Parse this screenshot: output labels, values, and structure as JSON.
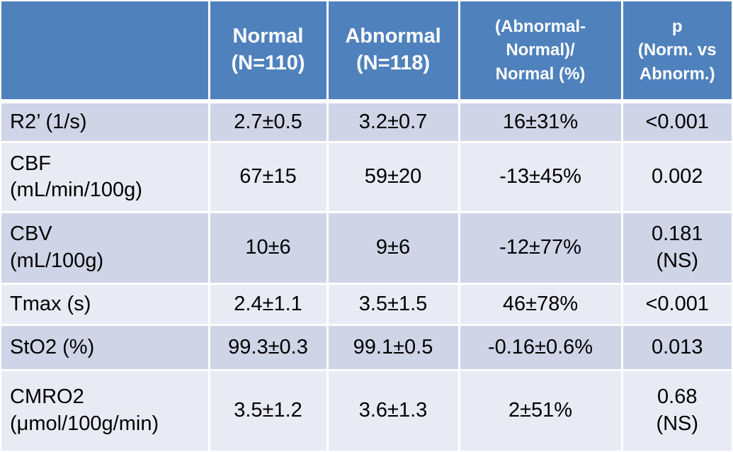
{
  "table": {
    "colors": {
      "header_bg": "#4F81BD",
      "row_dark": "#CFD5E7",
      "row_light": "#E9EBF4",
      "header_text": "#FFFFFF",
      "body_text": "#000000",
      "grid": "#FFFFFF"
    },
    "columns": {
      "param": "",
      "normal": "Normal\n(N=110)",
      "abnormal": "Abnormal\n(N=118)",
      "diff": "(Abnormal-\nNormal)/\nNormal (%)",
      "p": "p\n(Norm. vs\nAbnorm.)"
    },
    "rows": [
      {
        "label": "R2’ (1/s)",
        "normal": "2.7±0.5",
        "abnormal": "3.2±0.7",
        "diff": "16±31%",
        "p": "<0.001"
      },
      {
        "label": "CBF\n(mL/min/100g)",
        "normal": "67±15",
        "abnormal": "59±20",
        "diff": "-13±45%",
        "p": "0.002"
      },
      {
        "label": "CBV\n(mL/100g)",
        "normal": "10±6",
        "abnormal": "9±6",
        "diff": "-12±77%",
        "p": "0.181\n(NS)"
      },
      {
        "label": "Tmax (s)",
        "normal": "2.4±1.1",
        "abnormal": "3.5±1.5",
        "diff": "46±78%",
        "p": "<0.001"
      },
      {
        "label": "StO2 (%)",
        "normal": "99.3±0.3",
        "abnormal": "99.1±0.5",
        "diff": "-0.16±0.6%",
        "p": "0.013"
      },
      {
        "label": "CMRO2\n(μmol/100g/min)",
        "normal": "3.5±1.2",
        "abnormal": "3.6±1.3",
        "diff": "2±51%",
        "p": "0.68\n(NS)"
      }
    ]
  }
}
